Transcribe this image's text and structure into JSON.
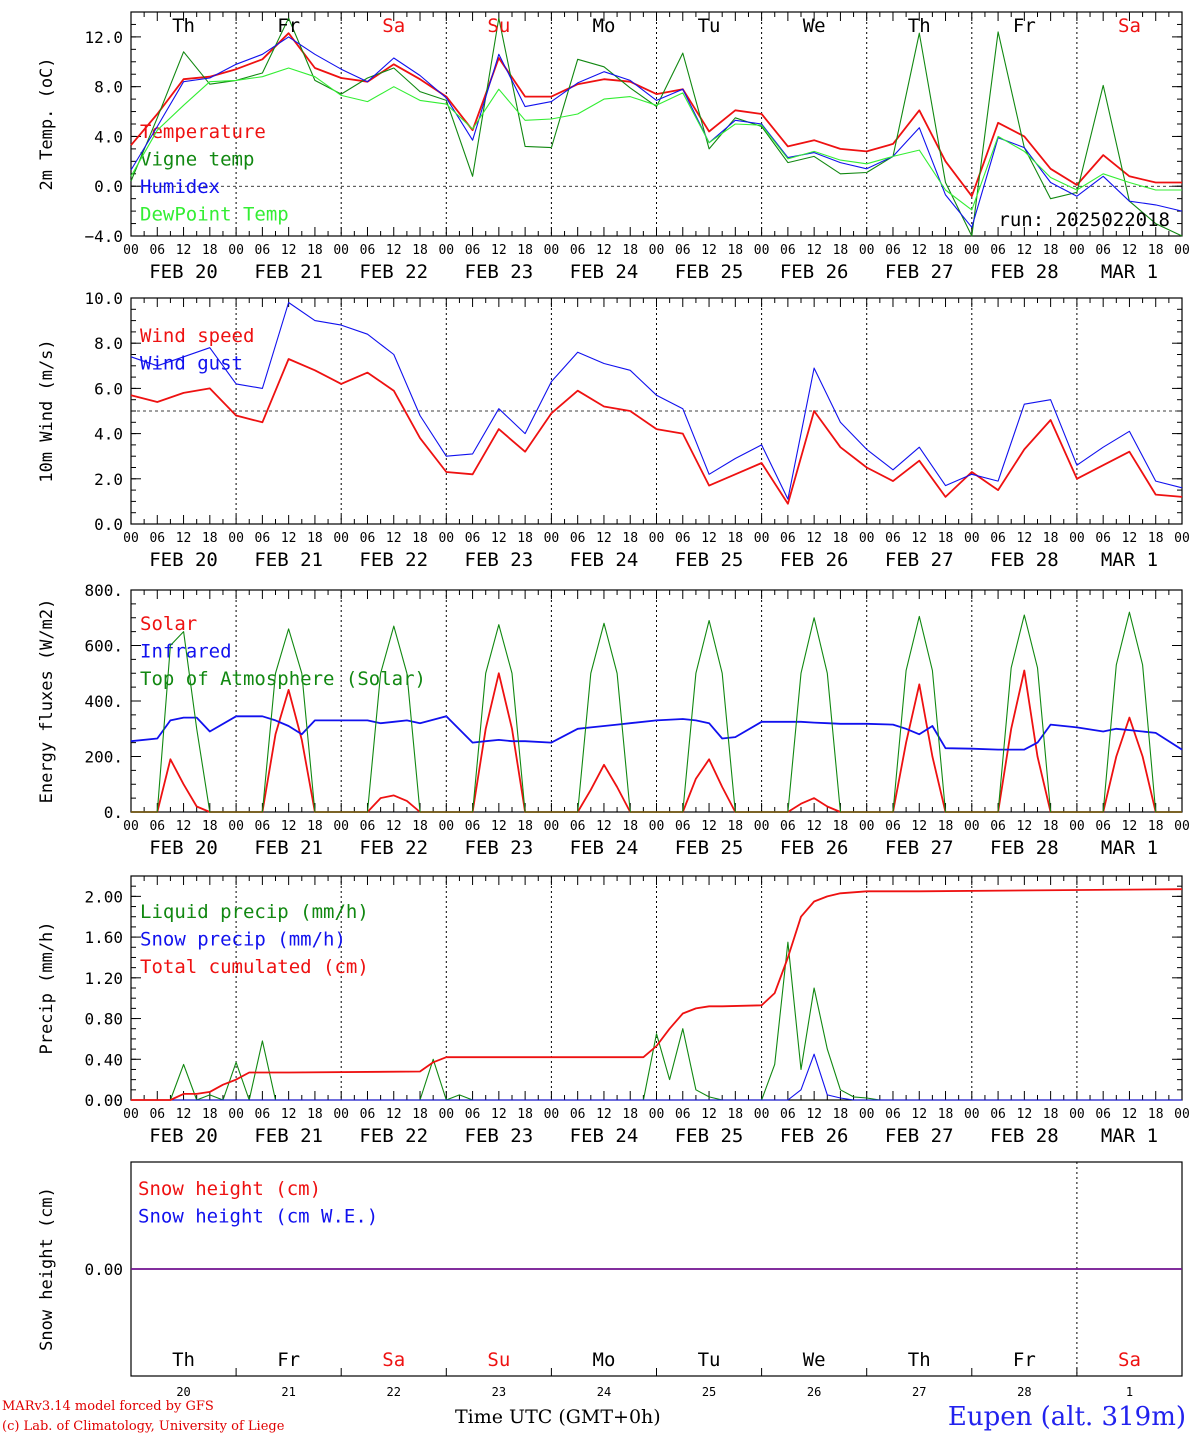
{
  "location_label": "Eupen (alt. 319m)",
  "credit_line1": "MARv3.14 model forced by GFS",
  "credit_line2": "(c) Lab. of Climatology, University of Liege",
  "time_axis_label": "Time UTC (GMT+0h)",
  "run_label": "run: 2025022018",
  "colors": {
    "red": "#ee1111",
    "green": "#118811",
    "blue": "#1111ee",
    "lightgreen": "#33ee33",
    "weekend": "#ee1111",
    "weekday": "#000000"
  },
  "day_names": [
    "Th",
    "Fr",
    "Sa",
    "Su",
    "Mo",
    "Tu",
    "We",
    "Th",
    "Fr",
    "Sa"
  ],
  "weekend_flags": [
    false,
    false,
    true,
    true,
    false,
    false,
    false,
    false,
    false,
    true
  ],
  "date_labels": [
    "FEB 20",
    "FEB 21",
    "FEB 22",
    "FEB 23",
    "FEB 24",
    "FEB 25",
    "FEB 26",
    "FEB 27",
    "FEB 28",
    "MAR  1"
  ],
  "day_numbers": [
    "20",
    "21",
    "22",
    "23",
    "24",
    "25",
    "26",
    "27",
    "28",
    "1"
  ],
  "hour_labels": [
    "00",
    "06",
    "12",
    "18"
  ],
  "chart_data": [
    {
      "type": "line",
      "ylabel": "2m Temp. (oC)",
      "ylim": [
        -4,
        14
      ],
      "yticks": [
        "−4.0",
        "0.0",
        "4.0",
        "8.0",
        "12.0"
      ],
      "ytick_values": [
        -4,
        0,
        4,
        8,
        12
      ],
      "reference_line": 0,
      "x_hours": [
        0,
        6,
        12,
        18,
        24,
        30,
        36,
        42,
        48,
        54,
        60,
        66,
        72,
        78,
        84,
        90,
        96,
        102,
        108,
        114,
        120,
        126,
        132,
        138,
        144,
        150,
        156,
        162,
        168,
        174,
        180,
        186,
        192,
        198,
        204,
        210,
        216,
        222,
        228,
        234,
        240
      ],
      "series": [
        {
          "name": "Temperature",
          "color": "red",
          "values": [
            3.3,
            5.8,
            8.6,
            8.8,
            9.4,
            10.2,
            12.3,
            9.5,
            8.7,
            8.4,
            9.8,
            8.6,
            7.2,
            4.5,
            10.3,
            7.2,
            7.2,
            8.2,
            8.6,
            8.4,
            7.4,
            7.8,
            4.4,
            6.1,
            5.8,
            3.2,
            3.7,
            3.0,
            2.8,
            3.4,
            6.1,
            2.0,
            -0.8,
            5.1,
            4.0,
            1.4,
            0.1,
            2.5,
            0.8,
            0.3,
            0.3
          ]
        },
        {
          "name": "Vigne temp",
          "color": "green",
          "values": [
            0.4,
            5.5,
            10.8,
            8.2,
            8.5,
            9.1,
            13.5,
            8.5,
            7.4,
            8.7,
            9.5,
            7.6,
            6.9,
            0.8,
            13.5,
            3.2,
            3.1,
            10.2,
            9.6,
            7.9,
            6.4,
            10.7,
            3.0,
            5.5,
            4.8,
            1.9,
            2.4,
            1.0,
            1.1,
            2.4,
            12.3,
            0.3,
            -4.0,
            12.4,
            3.1,
            -1.0,
            -0.5,
            8.1,
            -1.2,
            -3.0,
            -4.0
          ]
        },
        {
          "name": "Humidex",
          "color": "blue",
          "values": [
            1.3,
            4.8,
            8.4,
            8.7,
            9.8,
            10.6,
            12.0,
            10.6,
            9.4,
            8.4,
            10.3,
            8.9,
            7.1,
            3.7,
            10.6,
            6.4,
            6.8,
            8.3,
            9.2,
            8.5,
            6.9,
            7.8,
            3.5,
            5.3,
            5.0,
            2.3,
            2.7,
            1.9,
            1.4,
            2.4,
            4.7,
            -0.7,
            -3.3,
            3.9,
            3.1,
            0.3,
            -0.8,
            0.8,
            -1.2,
            -1.5,
            -2.0
          ]
        },
        {
          "name": "DewPoint Temp",
          "color": "lightgreen",
          "values": [
            0.8,
            4.5,
            6.5,
            8.4,
            8.5,
            8.8,
            9.5,
            8.8,
            7.3,
            6.8,
            8.0,
            6.9,
            6.6,
            4.6,
            7.8,
            5.3,
            5.4,
            5.8,
            7.0,
            7.2,
            6.5,
            7.5,
            3.5,
            5.0,
            4.9,
            2.2,
            2.8,
            2.1,
            1.8,
            2.4,
            2.9,
            -0.3,
            -1.9,
            4.0,
            2.8,
            0.7,
            -0.3,
            1.0,
            0.3,
            -0.3,
            -0.3
          ]
        }
      ]
    },
    {
      "type": "line",
      "ylabel": "10m Wind (m/s)",
      "ylim": [
        0,
        10
      ],
      "yticks": [
        "0.0",
        "2.0",
        "4.0",
        "6.0",
        "8.0",
        "10.0"
      ],
      "ytick_values": [
        0,
        2,
        4,
        6,
        8,
        10
      ],
      "reference_line": 5,
      "x_hours": [
        0,
        6,
        12,
        18,
        24,
        30,
        36,
        42,
        48,
        54,
        60,
        66,
        72,
        78,
        84,
        90,
        96,
        102,
        108,
        114,
        120,
        126,
        132,
        138,
        144,
        150,
        156,
        162,
        168,
        174,
        180,
        186,
        192,
        198,
        204,
        210,
        216,
        222,
        228,
        234,
        240
      ],
      "series": [
        {
          "name": "Wind speed",
          "color": "red",
          "values": [
            5.7,
            5.4,
            5.8,
            6.0,
            4.8,
            4.5,
            7.3,
            6.8,
            6.2,
            6.7,
            5.9,
            3.8,
            2.3,
            2.2,
            4.2,
            3.2,
            4.9,
            5.9,
            5.2,
            5.0,
            4.2,
            4.0,
            1.7,
            2.2,
            2.7,
            0.9,
            5.0,
            3.4,
            2.5,
            1.9,
            2.8,
            1.2,
            2.3,
            1.5,
            3.3,
            4.6,
            2.0,
            2.6,
            3.2,
            1.3,
            1.2
          ]
        },
        {
          "name": "Wind gust",
          "color": "blue",
          "values": [
            7.4,
            7.0,
            7.4,
            7.8,
            6.2,
            6.0,
            9.8,
            9.0,
            8.8,
            8.4,
            7.5,
            4.8,
            3.0,
            3.1,
            5.1,
            4.0,
            6.3,
            7.6,
            7.1,
            6.8,
            5.7,
            5.1,
            2.2,
            2.9,
            3.5,
            1.1,
            6.9,
            4.5,
            3.3,
            2.4,
            3.4,
            1.7,
            2.2,
            1.9,
            5.3,
            5.5,
            2.6,
            3.4,
            4.1,
            1.9,
            1.6
          ]
        }
      ]
    },
    {
      "type": "line",
      "ylabel": "Energy fluxes (W/m2)",
      "ylim": [
        0,
        800
      ],
      "yticks": [
        "0.",
        "200.",
        "400.",
        "600.",
        "800."
      ],
      "ytick_values": [
        0,
        200,
        400,
        600,
        800
      ],
      "x_hours": [
        0,
        6,
        9,
        12,
        15,
        18,
        24,
        30,
        33,
        36,
        39,
        42,
        48,
        54,
        57,
        60,
        63,
        66,
        72,
        78,
        81,
        84,
        87,
        90,
        96,
        102,
        105,
        108,
        111,
        114,
        120,
        126,
        129,
        132,
        135,
        138,
        144,
        150,
        153,
        156,
        159,
        162,
        168,
        174,
        177,
        180,
        183,
        186,
        192,
        198,
        201,
        204,
        207,
        210,
        216,
        222,
        225,
        228,
        231,
        234,
        240
      ],
      "series": [
        {
          "name": "Solar",
          "color": "red",
          "values": [
            0,
            0,
            190,
            100,
            20,
            0,
            0,
            0,
            280,
            440,
            260,
            0,
            0,
            0,
            50,
            60,
            40,
            0,
            0,
            0,
            300,
            500,
            300,
            0,
            0,
            0,
            80,
            170,
            90,
            0,
            0,
            0,
            120,
            190,
            90,
            0,
            0,
            0,
            30,
            50,
            20,
            0,
            0,
            0,
            250,
            460,
            200,
            0,
            0,
            0,
            300,
            510,
            200,
            0,
            0,
            0,
            200,
            340,
            200,
            0,
            0
          ]
        },
        {
          "name": "Infrared",
          "color": "blue",
          "values": [
            255,
            265,
            330,
            340,
            340,
            290,
            345,
            345,
            330,
            310,
            280,
            330,
            330,
            330,
            320,
            325,
            330,
            320,
            345,
            250,
            255,
            260,
            255,
            255,
            250,
            300,
            305,
            310,
            315,
            320,
            330,
            335,
            330,
            320,
            265,
            270,
            325,
            325,
            325,
            322,
            320,
            318,
            318,
            315,
            300,
            280,
            310,
            230,
            228,
            225,
            225,
            225,
            250,
            315,
            305,
            290,
            300,
            295,
            290,
            285,
            225
          ]
        },
        {
          "name": "Top of Atmosphere (Solar)",
          "color": "green",
          "values": [
            0,
            0,
            600,
            650,
            300,
            0,
            0,
            0,
            500,
            660,
            500,
            0,
            0,
            0,
            500,
            670,
            500,
            0,
            0,
            0,
            500,
            675,
            500,
            0,
            0,
            0,
            500,
            680,
            500,
            0,
            0,
            0,
            500,
            690,
            500,
            0,
            0,
            0,
            500,
            700,
            500,
            0,
            0,
            0,
            510,
            705,
            510,
            0,
            0,
            0,
            520,
            710,
            520,
            0,
            0,
            0,
            530,
            720,
            530,
            0,
            0
          ]
        }
      ]
    },
    {
      "type": "line",
      "ylabel": "Precip (mm/h)",
      "ylim": [
        0,
        2.2
      ],
      "yticks": [
        "0.00",
        "0.40",
        "0.80",
        "1.20",
        "1.60",
        "2.00"
      ],
      "ytick_values": [
        0,
        0.4,
        0.8,
        1.2,
        1.6,
        2.0
      ],
      "x_hours": [
        0,
        9,
        12,
        15,
        18,
        21,
        24,
        27,
        30,
        33,
        36,
        66,
        69,
        72,
        75,
        78,
        117,
        120,
        123,
        126,
        129,
        132,
        135,
        144,
        147,
        150,
        153,
        156,
        159,
        162,
        165,
        168,
        171,
        180,
        240
      ],
      "series": [
        {
          "name": "Liquid precip (mm/h)",
          "color": "green",
          "values": [
            0,
            0,
            0.35,
            0,
            0.05,
            0,
            0.37,
            0,
            0.58,
            0,
            0,
            0,
            0.4,
            0,
            0.05,
            0,
            0,
            0.65,
            0.2,
            0.7,
            0.1,
            0.03,
            0,
            0,
            0.35,
            1.55,
            0.3,
            1.1,
            0.5,
            0.1,
            0.03,
            0.02,
            0,
            0,
            0
          ]
        },
        {
          "name": "Snow precip (mm/h)",
          "color": "blue",
          "values": [
            0,
            0,
            0,
            0,
            0,
            0,
            0,
            0,
            0,
            0,
            0,
            0,
            0,
            0,
            0,
            0,
            0,
            0,
            0,
            0,
            0,
            0,
            0,
            0,
            0,
            0,
            0.1,
            0.45,
            0.05,
            0.02,
            0,
            0,
            0,
            0,
            0
          ]
        },
        {
          "name": "Total cumulated (cm)",
          "color": "red",
          "values": [
            0,
            0,
            0.06,
            0.06,
            0.08,
            0.15,
            0.2,
            0.27,
            0.27,
            0.27,
            0.27,
            0.28,
            0.37,
            0.42,
            0.42,
            0.42,
            0.42,
            0.53,
            0.7,
            0.85,
            0.9,
            0.92,
            0.92,
            0.93,
            1.05,
            1.4,
            1.8,
            1.95,
            2.0,
            2.03,
            2.04,
            2.05,
            2.05,
            2.05,
            2.07
          ]
        }
      ]
    },
    {
      "type": "line",
      "ylabel": "Snow height (cm)",
      "ylim": [
        -1,
        1
      ],
      "yticks": [
        "0.00"
      ],
      "ytick_values": [
        0
      ],
      "x_hours": [
        0,
        240
      ],
      "series": [
        {
          "name": "Snow height (cm)",
          "color": "red",
          "values": [
            0,
            0
          ]
        },
        {
          "name": "Snow height (cm W.E.)",
          "color": "blue",
          "values": [
            0,
            0
          ]
        }
      ]
    }
  ]
}
